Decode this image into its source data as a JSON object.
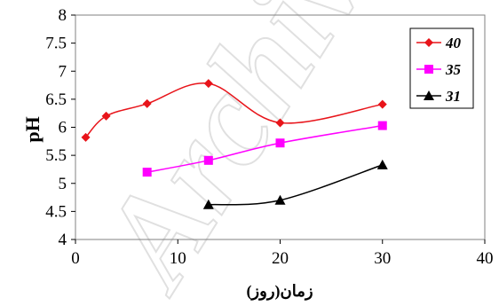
{
  "chart_data": {
    "type": "line",
    "xlabel": "زمان(روز)",
    "ylabel": "pH",
    "xlim": [
      0,
      40
    ],
    "ylim": [
      4,
      8
    ],
    "x_ticks": [
      "0",
      "10",
      "20",
      "30",
      "40"
    ],
    "y_ticks": [
      "4",
      "4.5",
      "5",
      "5.5",
      "6",
      "6.5",
      "7",
      "7.5",
      "8"
    ],
    "grid": false,
    "legend_position": "top-right",
    "series": [
      {
        "name": "40",
        "color": "#e8141a",
        "marker": "diamond",
        "points": [
          [
            1,
            5.82
          ],
          [
            3,
            6.2
          ],
          [
            7,
            6.42
          ],
          [
            13,
            6.78
          ],
          [
            20,
            6.08
          ],
          [
            30,
            6.41
          ]
        ]
      },
      {
        "name": "35",
        "color": "#ff00ff",
        "marker": "square",
        "points": [
          [
            7,
            5.2
          ],
          [
            13,
            5.41
          ],
          [
            20,
            5.72
          ],
          [
            30,
            6.03
          ]
        ]
      },
      {
        "name": "31",
        "color": "#000000",
        "marker": "triangle",
        "points": [
          [
            13,
            4.62
          ],
          [
            20,
            4.7
          ],
          [
            30,
            5.33
          ]
        ]
      }
    ],
    "watermark": "Archive"
  }
}
